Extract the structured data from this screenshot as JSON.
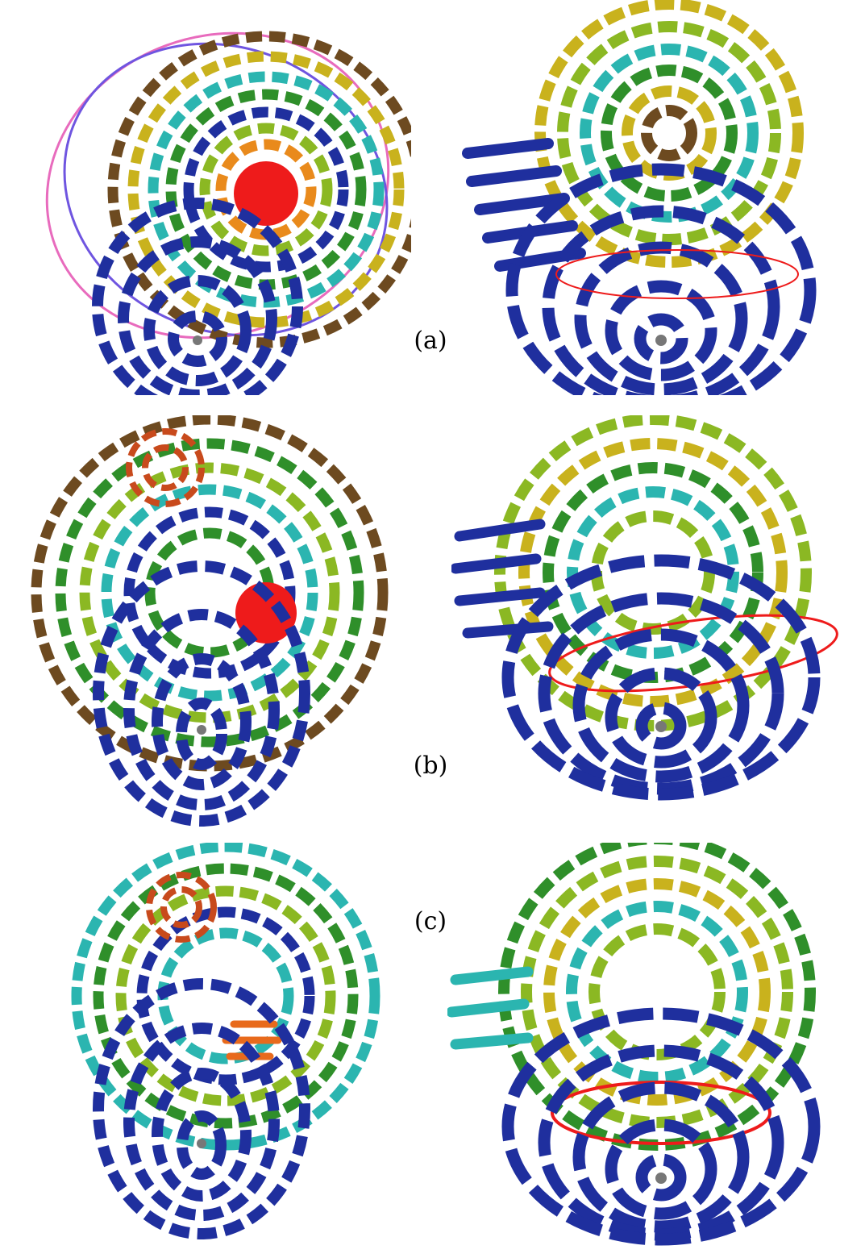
{
  "captions": {
    "a": "(a)",
    "b": "(b)",
    "c": "(c)"
  },
  "palette": {
    "blue": "#1f2f9e",
    "green": "#2f8f2a",
    "lime": "#8bb823",
    "yellow": "#c9b21d",
    "orange": "#e98a1c",
    "red": "#ee1b1b",
    "cyan": "#2bb5b0",
    "brown": "#6d4a20",
    "pink": "#e86bbd",
    "violet": "#6f55e0"
  }
}
